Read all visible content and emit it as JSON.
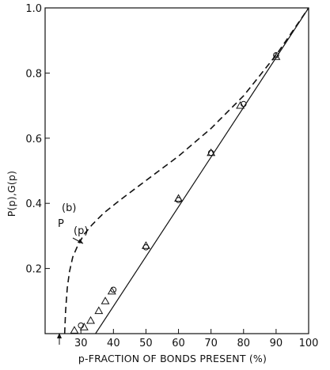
{
  "chart_data": {
    "type": "line",
    "title": "",
    "xlabel": "p-FRACTION OF BONDS PRESENT (%)",
    "ylabel": "P(p),G(p)",
    "xlim": [
      19,
      100
    ],
    "ylim": [
      0,
      1.0
    ],
    "x_ticks": [
      30,
      40,
      50,
      60,
      70,
      80,
      90,
      100
    ],
    "x_tick_labels": [
      "30",
      "40",
      "50",
      "60",
      "70",
      "80",
      "90",
      "100"
    ],
    "y_ticks": [
      0.2,
      0.4,
      0.6,
      0.8,
      1.0
    ],
    "y_tick_labels": [
      "0.2",
      "0.4",
      "0.6",
      "0.8",
      "1.0"
    ],
    "grid": false,
    "annotations": {
      "curve_label_super": "(b)",
      "curve_label_main": "P",
      "curve_label_arg": "(p)"
    },
    "series": [
      {
        "style": "dashed",
        "x": [
          25,
          25.3,
          25.8,
          26.5,
          27.5,
          29,
          31,
          33.5,
          37,
          42,
          50,
          60,
          70,
          80,
          90,
          100
        ],
        "y": [
          0.0,
          0.07,
          0.14,
          0.19,
          0.235,
          0.27,
          0.305,
          0.335,
          0.37,
          0.41,
          0.47,
          0.545,
          0.63,
          0.73,
          0.855,
          1.0
        ]
      },
      {
        "style": "solid",
        "x": [
          34.5,
          100
        ],
        "y": [
          0.0,
          1.0
        ]
      },
      {
        "marker": "triangle",
        "x": [
          28,
          31,
          33,
          35.5,
          37.5,
          39.5,
          50,
          60,
          70,
          79,
          90
        ],
        "y": [
          0.01,
          0.02,
          0.04,
          0.07,
          0.1,
          0.13,
          0.27,
          0.415,
          0.555,
          0.7,
          0.85
        ]
      },
      {
        "marker": "circle",
        "x": [
          30,
          40,
          50,
          60,
          70,
          80,
          90
        ],
        "y": [
          0.025,
          0.135,
          0.265,
          0.41,
          0.555,
          0.705,
          0.855
        ]
      }
    ]
  }
}
